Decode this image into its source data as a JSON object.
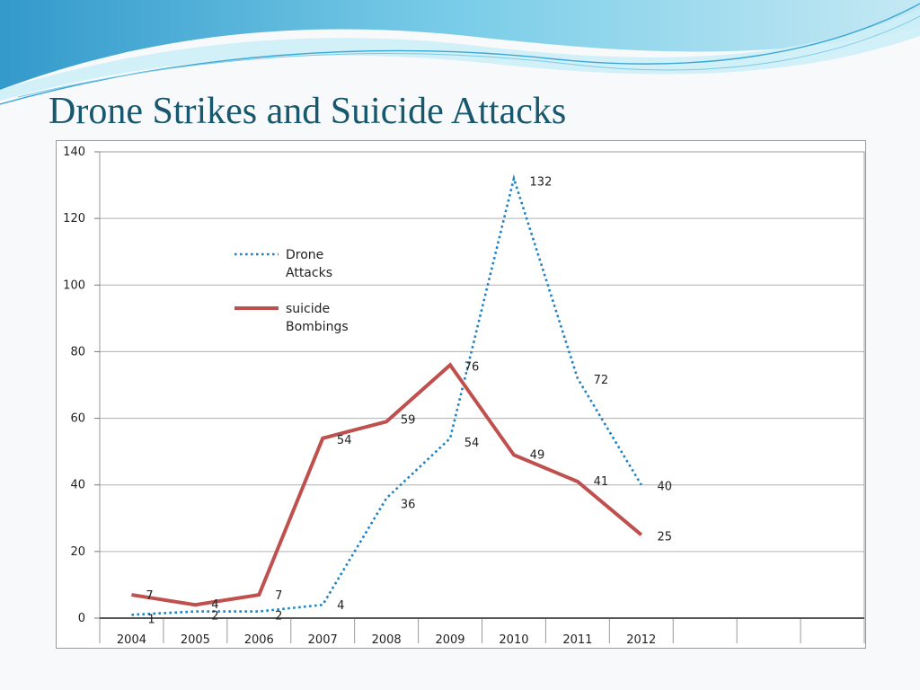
{
  "slide": {
    "title": "Drone Strikes and Suicide Attacks"
  },
  "colors": {
    "title": "#17586e",
    "wave_dark": "#2a9fd0",
    "wave_light": "#8fd3ea",
    "grid": "#b0b0b0",
    "plot_border": "#9a9a9a"
  },
  "chart_data": {
    "type": "line",
    "title": "",
    "xlabel": "",
    "ylabel": "",
    "x": [
      "2004",
      "2005",
      "2006",
      "2007",
      "2008",
      "2009",
      "2010",
      "2011",
      "2012"
    ],
    "extra_empty_categories": 3,
    "ylim": [
      0,
      140
    ],
    "yticks": [
      0,
      20,
      40,
      60,
      80,
      100,
      120,
      140
    ],
    "grid": true,
    "legend_position": "top-left",
    "series": [
      {
        "name": "Drone Attacks",
        "legend_lines": [
          "Drone",
          "Attacks"
        ],
        "values": [
          1,
          2,
          2,
          4,
          36,
          54,
          132,
          72,
          40
        ],
        "labels": [
          "1",
          "2",
          "2",
          "4",
          "36",
          "54",
          "132",
          "72",
          "40"
        ],
        "color": "#1f82c4",
        "style": "dotted"
      },
      {
        "name": "suicide Bombings",
        "legend_lines": [
          "suicide",
          "Bombings"
        ],
        "values": [
          7,
          4,
          7,
          54,
          59,
          76,
          49,
          41,
          25
        ],
        "labels": [
          "7",
          "4",
          "7",
          "54",
          "59",
          "76",
          "49",
          "41",
          "25"
        ],
        "color": "#c0504d",
        "style": "solid"
      }
    ]
  }
}
